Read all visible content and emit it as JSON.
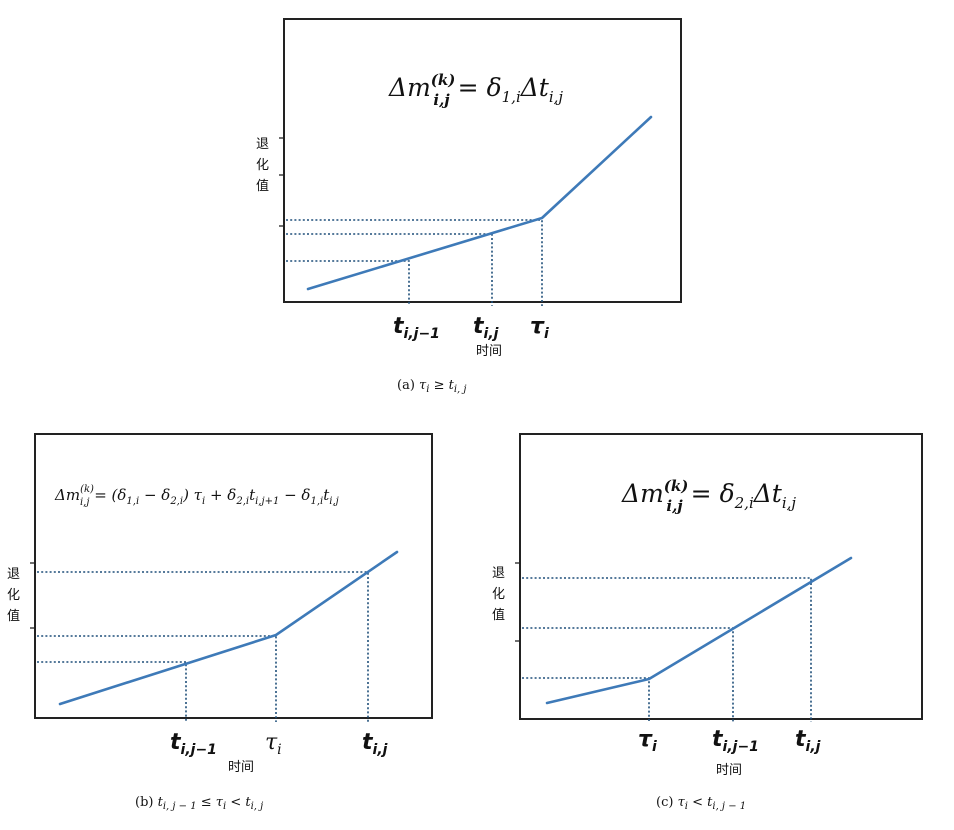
{
  "panels": {
    "a": {
      "formula": "Δm(k)i,j = δ1,iΔti,j",
      "ylabel_chars": [
        "退",
        "化",
        "值"
      ],
      "xlabel": "时间",
      "ticks": [
        "ti,j−1",
        "ti,j",
        "τi"
      ],
      "caption": "(a) τi ≥ ti,j"
    },
    "b": {
      "formula": "Δm(k)i,j = (δ1,i − δ2,i) τi + δ2,iti,j+1 − δ1,iti,j",
      "ylabel_chars": [
        "退",
        "化",
        "值"
      ],
      "xlabel": "时间",
      "ticks": [
        "ti,j−1",
        "τi",
        "ti,j"
      ],
      "caption": "(b) ti,j−1 ≤ τi < ti,j"
    },
    "c": {
      "formula": "Δm(k)i,j = δ2,iΔti,j",
      "ylabel_chars": [
        "退",
        "化",
        "值"
      ],
      "xlabel": "时间",
      "ticks": [
        "τi",
        "ti,j−1",
        "ti,j"
      ],
      "caption": "(c) τi < ti,j−1"
    }
  },
  "colors": {
    "curve": "#3e7ab8",
    "guide": "#1f4f7a",
    "frame": "#222222"
  }
}
